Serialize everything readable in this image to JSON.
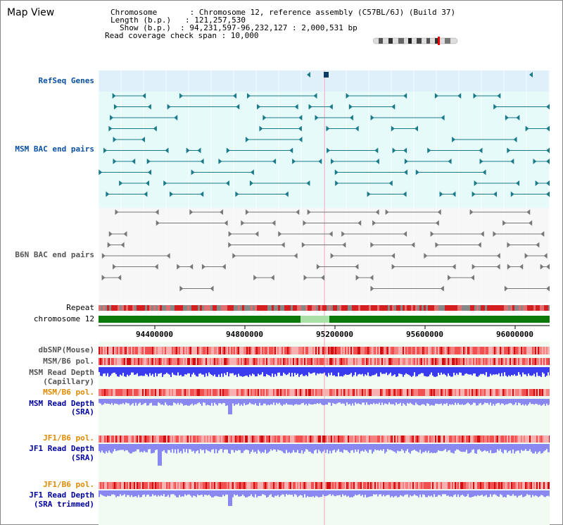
{
  "view": {
    "title": "Map View",
    "info_lines": [
      "Chromosome       : Chromosome 12, reference assembly (C57BL/6J) (Build 37)",
      "Length (b.p.)   : 121,257,530",
      "Show (b.p.)  : 94,231,597-96,232,127 : 2,000,531 bp",
      "Read coverage check span : 10,000"
    ]
  },
  "tracks": {
    "refseq": "RefSeq Genes",
    "msm_bac": "MSM BAC end pairs",
    "b6n_bac": "B6N BAC end pairs",
    "repeat": "Repeat",
    "chromosome": "chromosome 12",
    "dbsnp": "dbSNP(Mouse)",
    "msm_b6_pol_1": "MSM/B6 pol.",
    "msm_read_depth_cap_1": "MSM Read Depth",
    "msm_read_depth_cap_2": "(Capillary)",
    "msm_b6_pol_2": "MSM/B6 pol.",
    "msm_read_depth_sra_1": "MSM Read Depth",
    "msm_read_depth_sra_2": "(SRA)",
    "jf1_b6_pol_1": "JF1/B6 pol.",
    "jf1_read_depth_sra_1": "JF1 Read Depth",
    "jf1_read_depth_sra_2": "(SRA)",
    "jf1_b6_pol_2": "JF1/B6 pol.",
    "jf1_read_depth_trim_1": "JF1 Read Depth",
    "jf1_read_depth_trim_2": "(SRA trimmed)"
  },
  "axis": {
    "ticks": [
      "94400000",
      "94800000",
      "95200000",
      "95600000",
      "96000000"
    ]
  },
  "colors": {
    "refseq_bg": "#dff0fb",
    "msm_bac_bg": "#e6fafa",
    "b6n_bg": "#f7f7f7",
    "teal": "#1a7a8a",
    "gray_feature": "#777777",
    "chrom_green": "#0b7a0b",
    "label_blue": "#0a50a0",
    "label_orange": "#e08a00",
    "label_dark_blue": "#0000a0",
    "depth_blue": "#3a3af0",
    "depth_light_blue": "#8888f0",
    "pol_red": "#f03030"
  }
}
